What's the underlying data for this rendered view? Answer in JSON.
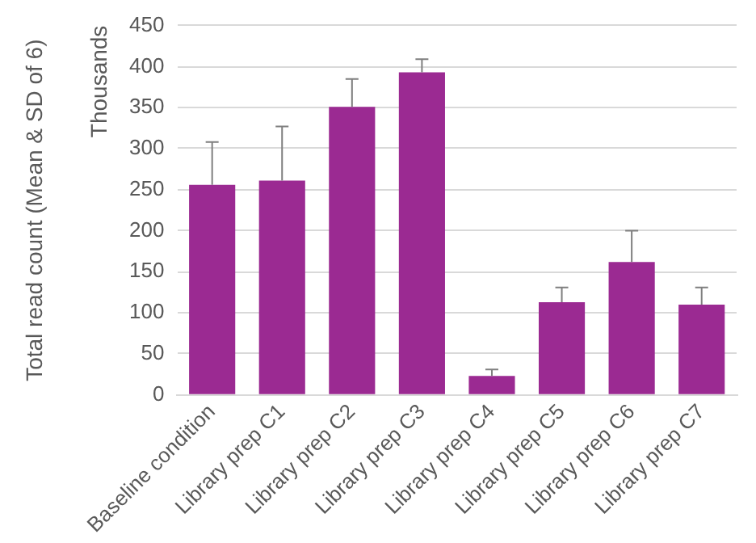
{
  "chart_data": {
    "type": "bar",
    "ylabel": "Total read count (Mean & SD of 6)",
    "annotations": [
      "Thousands"
    ],
    "categories": [
      "Baseline condition",
      "Library prep C1",
      "Library prep C2",
      "Library prep C3",
      "Library prep C4",
      "Library prep C5",
      "Library prep C6",
      "Library prep C7"
    ],
    "values": [
      256,
      261,
      351,
      393,
      23,
      113,
      162,
      110
    ],
    "errors": [
      [
        256,
        308
      ],
      [
        261,
        327
      ],
      [
        351,
        385
      ],
      [
        393,
        409
      ],
      [
        23,
        31
      ],
      [
        113,
        131
      ],
      [
        162,
        200
      ],
      [
        110,
        131
      ]
    ],
    "color": "#9b2a92",
    "ylim": [
      0,
      450
    ],
    "yticks": [
      0,
      50,
      100,
      150,
      200,
      250,
      300,
      350,
      400,
      450
    ],
    "grid": "y",
    "legend": false
  }
}
